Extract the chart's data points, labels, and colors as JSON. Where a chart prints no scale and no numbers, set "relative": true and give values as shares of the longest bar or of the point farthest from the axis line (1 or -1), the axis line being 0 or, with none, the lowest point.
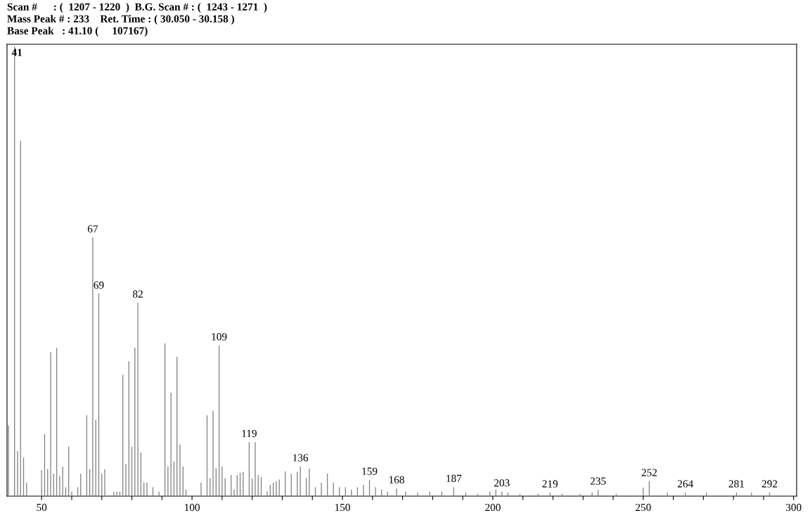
{
  "chart_data": {
    "type": "bar",
    "title": "Scan #      : (  1207 - 1220  )  B.G. Scan # : (  1243 - 1271  )",
    "subtitle": "Mass Peak # : 233    Ret. Time : ( 30.050 - 30.158 )",
    "annotations": [
      "Base Peak   : 41.10 (     107167)",
      {
        "text": "41",
        "x": 41,
        "y": 1.0
      },
      {
        "text": "67",
        "x": 67,
        "y": 0.575
      },
      {
        "text": "69",
        "x": 69,
        "y": 0.45
      },
      {
        "text": "82",
        "x": 82,
        "y": 0.43
      },
      {
        "text": "109",
        "x": 109,
        "y": 0.335
      },
      {
        "text": "119",
        "x": 119,
        "y": 0.12
      },
      {
        "text": "136",
        "x": 136,
        "y": 0.066
      },
      {
        "text": "159",
        "x": 159,
        "y": 0.036
      },
      {
        "text": "168",
        "x": 168,
        "y": 0.017
      },
      {
        "text": "187",
        "x": 187,
        "y": 0.02
      },
      {
        "text": "203",
        "x": 203,
        "y": 0.01
      },
      {
        "text": "219",
        "x": 219,
        "y": 0.008
      },
      {
        "text": "235",
        "x": 235,
        "y": 0.014
      },
      {
        "text": "252",
        "x": 252,
        "y": 0.033
      },
      {
        "text": "264",
        "x": 264,
        "y": 0.008
      },
      {
        "text": "281",
        "x": 281,
        "y": 0.008
      },
      {
        "text": "292",
        "x": 292,
        "y": 0.008
      }
    ],
    "relative": true,
    "color": "#808080",
    "tick_labels": "x",
    "grid": false,
    "xlim": [
      38.5,
      301
    ],
    "xticks": [
      50,
      {
        "value": 60,
        "label": null
      },
      {
        "value": 70,
        "label": null
      },
      {
        "value": 80,
        "label": null
      },
      {
        "value": 90,
        "label": null
      },
      100,
      {
        "value": 110,
        "label": null
      },
      {
        "value": 120,
        "label": null
      },
      {
        "value": 130,
        "label": null
      },
      {
        "value": 140,
        "label": null
      },
      150,
      {
        "value": 160,
        "label": null
      },
      {
        "value": 170,
        "label": null
      },
      {
        "value": 180,
        "label": null
      },
      {
        "value": 190,
        "label": null
      },
      200,
      {
        "value": 210,
        "label": null
      },
      {
        "value": 220,
        "label": null
      },
      {
        "value": 230,
        "label": null
      },
      {
        "value": 240,
        "label": null
      },
      250,
      {
        "value": 260,
        "label": null
      },
      {
        "value": 270,
        "label": null
      },
      {
        "value": 280,
        "label": null
      },
      {
        "value": 290,
        "label": null
      },
      300
    ],
    "x": [
      39,
      41,
      42,
      43,
      44,
      45,
      50,
      51,
      52,
      53,
      54,
      55,
      56,
      57,
      58,
      59,
      60,
      62,
      63,
      65,
      66,
      67,
      68,
      69,
      70,
      71,
      74,
      75,
      76,
      77,
      78,
      79,
      80,
      81,
      82,
      83,
      84,
      85,
      87,
      89,
      91,
      92,
      93,
      94,
      95,
      96,
      97,
      98,
      103,
      105,
      106,
      107,
      108,
      109,
      110,
      111,
      113,
      114,
      115,
      116,
      117,
      119,
      120,
      121,
      122,
      123,
      125,
      126,
      127,
      128,
      129,
      131,
      133,
      135,
      136,
      138,
      139,
      141,
      143,
      145,
      147,
      149,
      151,
      153,
      155,
      157,
      159,
      161,
      163,
      165,
      168,
      171,
      175,
      179,
      183,
      187,
      191,
      195,
      199,
      201,
      203,
      205,
      209,
      215,
      219,
      223,
      229,
      233,
      235,
      241,
      250,
      252,
      258,
      264,
      271,
      281,
      286,
      292
    ],
    "values": [
      0.157,
      1.0,
      0.1,
      0.79,
      0.086,
      0.03,
      0.058,
      0.138,
      0.06,
      0.32,
      0.05,
      0.33,
      0.045,
      0.066,
      0.02,
      0.11,
      0.01,
      0.02,
      0.05,
      0.18,
      0.06,
      0.575,
      0.17,
      0.45,
      0.05,
      0.06,
      0.01,
      0.01,
      0.01,
      0.27,
      0.072,
      0.3,
      0.11,
      0.33,
      0.43,
      0.097,
      0.03,
      0.03,
      0.02,
      0.01,
      0.34,
      0.066,
      0.23,
      0.077,
      0.31,
      0.115,
      0.066,
      0.015,
      0.03,
      0.18,
      0.04,
      0.19,
      0.062,
      0.335,
      0.066,
      0.04,
      0.047,
      0.015,
      0.047,
      0.052,
      0.054,
      0.12,
      0.039,
      0.12,
      0.047,
      0.042,
      0.01,
      0.025,
      0.03,
      0.033,
      0.037,
      0.055,
      0.05,
      0.054,
      0.066,
      0.04,
      0.061,
      0.02,
      0.03,
      0.05,
      0.03,
      0.02,
      0.02,
      0.015,
      0.02,
      0.025,
      0.036,
      0.02,
      0.015,
      0.01,
      0.017,
      0.01,
      0.008,
      0.01,
      0.01,
      0.02,
      0.008,
      0.005,
      0.01,
      0.015,
      0.01,
      0.008,
      0.005,
      0.005,
      0.008,
      0.005,
      0.005,
      0.008,
      0.014,
      0.005,
      0.019,
      0.033,
      0.008,
      0.008,
      0.008,
      0.008,
      0.008,
      0.008
    ]
  }
}
